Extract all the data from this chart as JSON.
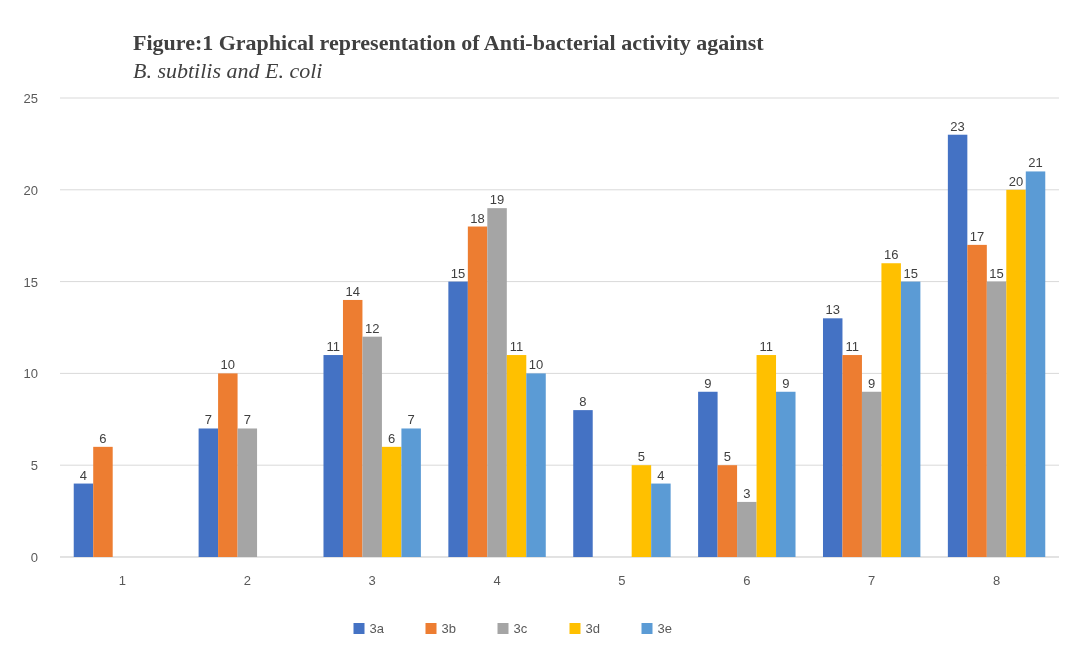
{
  "chart_data": {
    "type": "bar",
    "title": "Figure:1  Graphical representation of Anti-bacterial activity against",
    "subtitle": "B. subtilis and E. coli",
    "categories": [
      "1",
      "2",
      "3",
      "4",
      "5",
      "6",
      "7",
      "8"
    ],
    "series": [
      {
        "name": "3a",
        "color": "#4472c4",
        "values": [
          4,
          7,
          11,
          15,
          8,
          9,
          13,
          23
        ]
      },
      {
        "name": "3b",
        "color": "#ed7d31",
        "values": [
          6,
          10,
          14,
          18,
          null,
          5,
          11,
          17
        ]
      },
      {
        "name": "3c",
        "color": "#a5a5a5",
        "values": [
          null,
          7,
          12,
          19,
          null,
          3,
          9,
          15
        ]
      },
      {
        "name": "3d",
        "color": "#ffc000",
        "values": [
          null,
          null,
          6,
          11,
          5,
          11,
          16,
          20
        ]
      },
      {
        "name": "3e",
        "color": "#5b9bd5",
        "values": [
          null,
          null,
          7,
          10,
          4,
          9,
          15,
          21
        ]
      }
    ],
    "ylim": [
      0,
      25
    ],
    "yticks": [
      0,
      5,
      10,
      15,
      20,
      25
    ],
    "grid": "y",
    "legend": "bottom",
    "data_labels": true
  }
}
